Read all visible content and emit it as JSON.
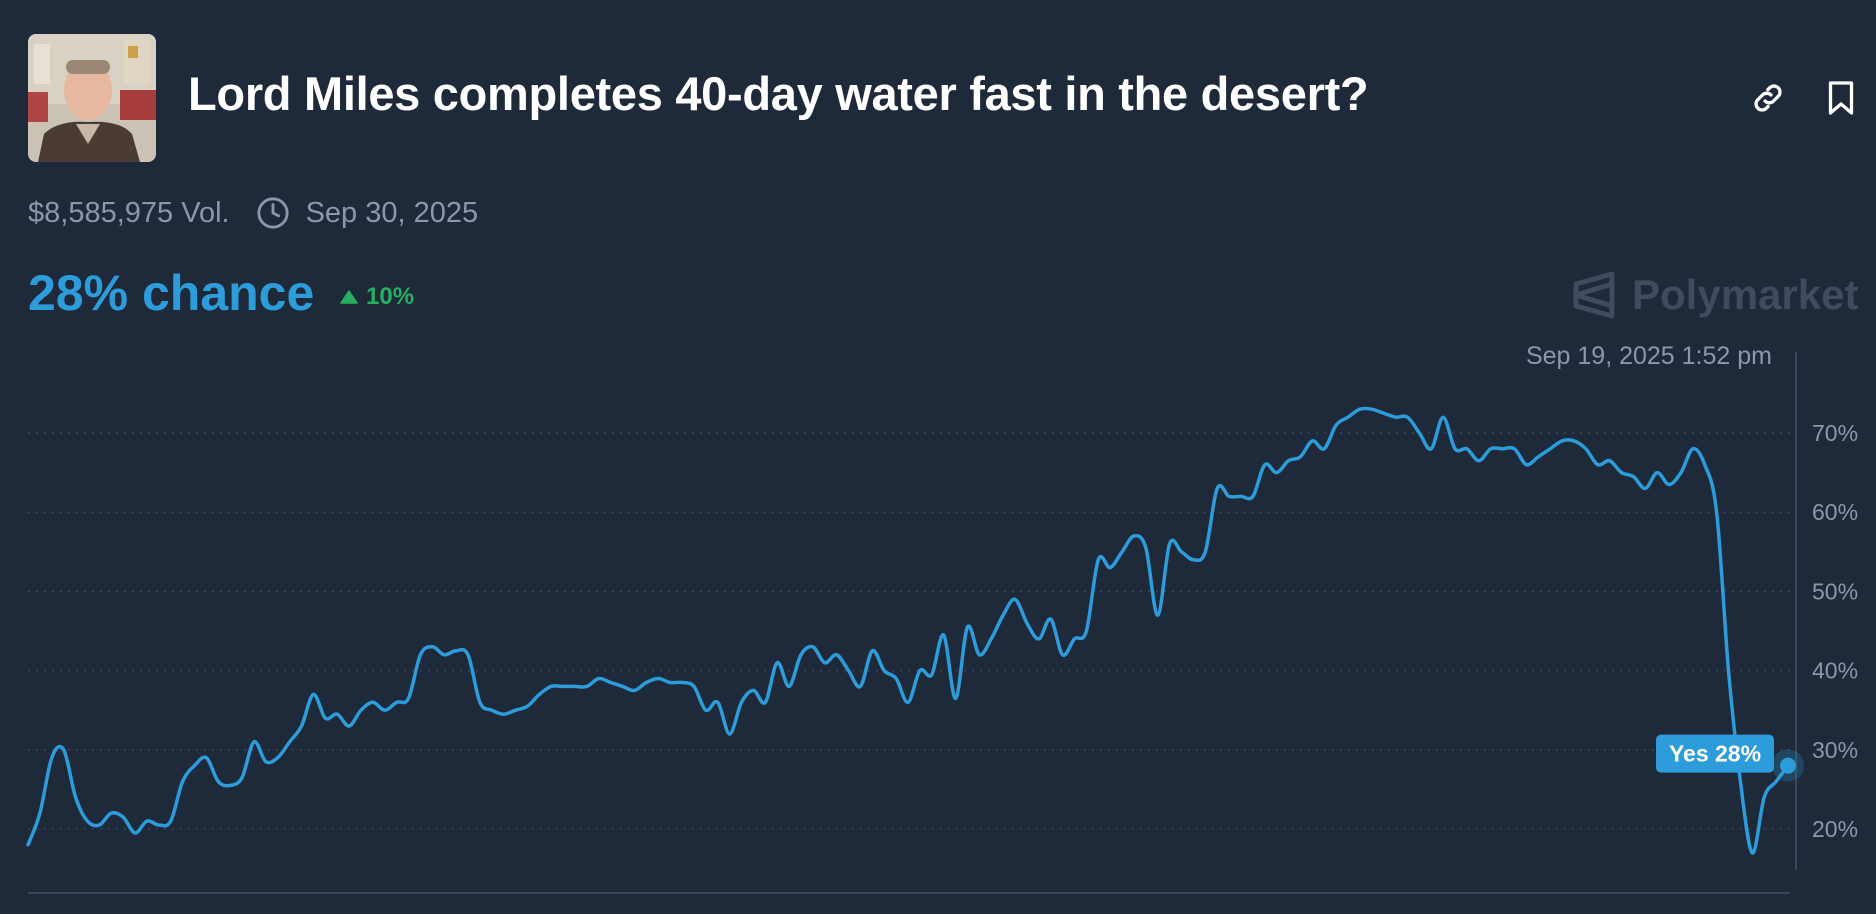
{
  "market": {
    "title": "Lord Miles completes 40-day water fast in the desert?",
    "volume": "$8,585,975 Vol.",
    "end_date": "Sep 30, 2025",
    "chance_text": "28% chance",
    "change_text": "10%",
    "brand": "Polymarket",
    "hover_date": "Sep 19, 2025 1:52 pm",
    "tooltip": "Yes 28%"
  },
  "icons": {
    "avatar": "person-photo",
    "link": "link-icon",
    "bookmark": "bookmark-icon",
    "clock": "clock-icon",
    "change": "triangle-up-icon",
    "brand": "polymarket-logo-icon"
  },
  "colors": {
    "background": "#1e2a3a",
    "line": "#2d9cdb",
    "up": "#27ae60",
    "muted": "#8a98ab"
  },
  "chart_data": {
    "type": "line",
    "ylim": [
      15,
      80
    ],
    "y_ticks": [
      20,
      30,
      40,
      50,
      60,
      70
    ],
    "y_tick_labels": [
      "20%",
      "30%",
      "40%",
      "50%",
      "60%",
      "70%"
    ],
    "grid": true,
    "series": [
      {
        "name": "Yes",
        "values": [
          18,
          22,
          29,
          30,
          24,
          21,
          20.5,
          22,
          21.5,
          19.5,
          21,
          20.5,
          21,
          26,
          28,
          29,
          26,
          25.5,
          26.5,
          31,
          28.5,
          29,
          31,
          33,
          37,
          34,
          34.5,
          33,
          35,
          36,
          35,
          36,
          36.5,
          42,
          43,
          42,
          42.5,
          42,
          36,
          35,
          34.5,
          35,
          35.5,
          37,
          38,
          38,
          38,
          38,
          39,
          38.5,
          38,
          37.5,
          38.5,
          39,
          38.5,
          38.5,
          38,
          35,
          36,
          32,
          36,
          37.5,
          36,
          41,
          38,
          42,
          43,
          41,
          42,
          40,
          38,
          42.5,
          40,
          39,
          36,
          40,
          39.5,
          44.5,
          36.5,
          45.5,
          42,
          44,
          47,
          49,
          46,
          44,
          46.5,
          42,
          44,
          45,
          54,
          53,
          55,
          57,
          55.5,
          47,
          56,
          55,
          54,
          55,
          63,
          62,
          62,
          62,
          66,
          65,
          66.5,
          67,
          69,
          68,
          71,
          72,
          73,
          73,
          72.5,
          72,
          72,
          70,
          68,
          72,
          68,
          68,
          66.5,
          68,
          68,
          68,
          66,
          67,
          68,
          69,
          69,
          68,
          66,
          66.5,
          65,
          64.5,
          63,
          65,
          63.5,
          65,
          68,
          66,
          60,
          40,
          26,
          17,
          24,
          26,
          28
        ]
      }
    ]
  }
}
